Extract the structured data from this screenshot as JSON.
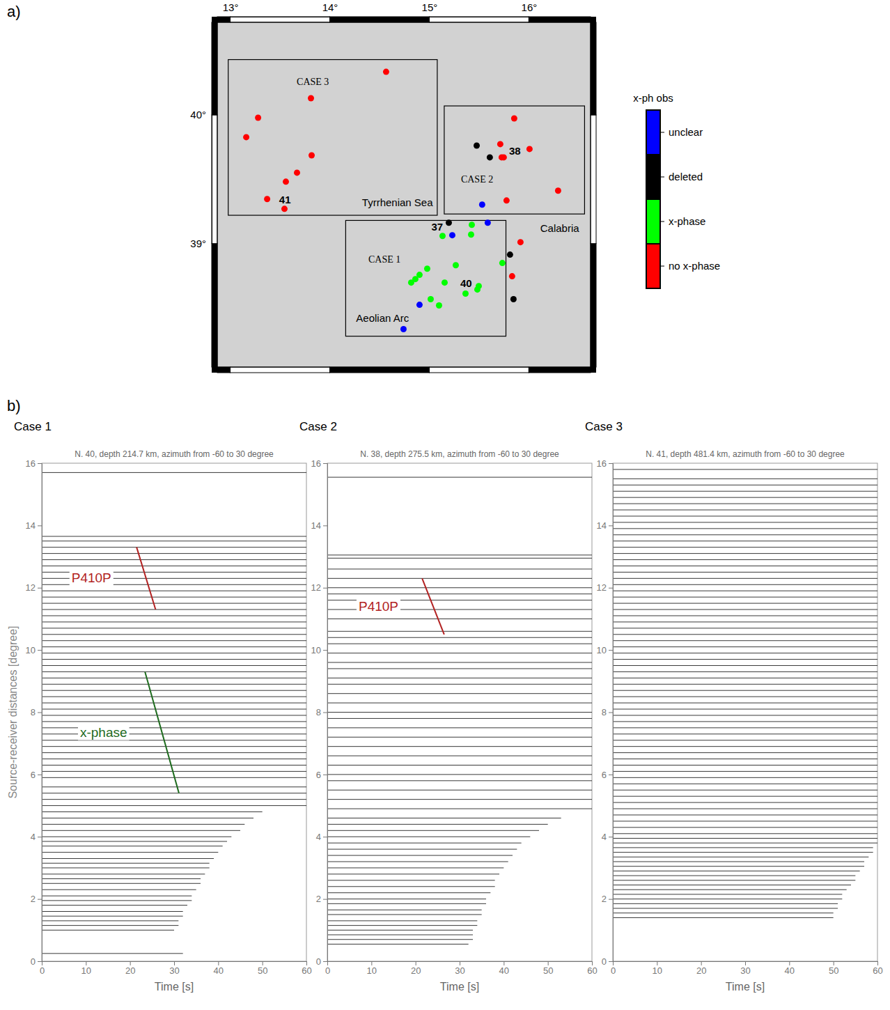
{
  "chart_data": [
    {
      "type": "scatter",
      "panel_label": "a)",
      "xlim": [
        12.87,
        16.62
      ],
      "ylim": [
        38.04,
        40.72
      ],
      "xticks": [
        {
          "value": 13,
          "label": "13°"
        },
        {
          "value": 14,
          "label": "14°"
        },
        {
          "value": 15,
          "label": "15°"
        },
        {
          "value": 16,
          "label": "16°"
        }
      ],
      "yticks": [
        {
          "value": 39,
          "label": "39°"
        },
        {
          "value": 40,
          "label": "40°"
        }
      ],
      "legend": "right",
      "legend_title": "x-ph obs",
      "series": [
        {
          "name": "unclear",
          "color": "#0000ff",
          "x": [
            15.531,
            15.587,
            15.231,
            14.902,
            14.741
          ],
          "y": [
            39.303,
            39.162,
            39.065,
            38.524,
            38.335
          ]
        },
        {
          "name": "deleted",
          "color": "#000000",
          "x": [
            15.476,
            15.608,
            15.196,
            15.811,
            15.846
          ],
          "y": [
            39.762,
            39.67,
            39.162,
            38.914,
            38.568
          ]
        },
        {
          "name": "x-phase",
          "color": "#00ff00",
          "x": [
            15.427,
            15.133,
            15.42,
            15.266,
            14.979,
            15.734,
            14.902,
            14.86,
            14.818,
            15.154,
            15.497,
            15.483,
            15.364,
            15.014,
            15.098
          ],
          "y": [
            39.146,
            39.059,
            39.07,
            38.832,
            38.805,
            38.849,
            38.757,
            38.724,
            38.697,
            38.697,
            38.67,
            38.643,
            38.611,
            38.568,
            38.519
          ]
        },
        {
          "name": "no x-phase",
          "color": "#ff0000",
          "x": [
            14.566,
            13.811,
            13.28,
            13.161,
            13.818,
            13.671,
            13.559,
            13.371,
            13.545,
            15.853,
            15.713,
            15.727,
            15.748,
            16.007,
            16.294,
            15.776,
            15.916,
            15.832
          ],
          "y": [
            40.335,
            40.13,
            39.978,
            39.827,
            39.686,
            39.551,
            39.481,
            39.346,
            39.27,
            39.973,
            39.773,
            39.67,
            39.67,
            39.735,
            39.411,
            39.335,
            39.011,
            38.746
          ]
        }
      ],
      "boxes": [
        {
          "label": "CASE 3",
          "x": [
            12.98,
            15.08
          ],
          "y": [
            39.22,
            40.43
          ],
          "label_x": 13.83,
          "label_y": 40.26
        },
        {
          "label": "CASE 2",
          "x": [
            15.15,
            16.56
          ],
          "y": [
            39.23,
            40.07
          ],
          "label_x": 15.48,
          "label_y": 39.5
        },
        {
          "label": "CASE 1",
          "x": [
            14.16,
            15.77
          ],
          "y": [
            38.28,
            39.18
          ],
          "label_x": 14.55,
          "label_y": 38.88
        }
      ],
      "annotations": [
        {
          "text": "Tyrrhenian Sea",
          "x": 14.68,
          "y": 39.32
        },
        {
          "text": "Calabria",
          "x": 16.31,
          "y": 39.12
        },
        {
          "text": "Aeolian Arc",
          "x": 14.53,
          "y": 38.42
        }
      ],
      "event_labels": [
        {
          "text": "41",
          "x": 13.55,
          "y": 39.34
        },
        {
          "text": "38",
          "x": 15.86,
          "y": 39.72
        },
        {
          "text": "37",
          "x": 15.08,
          "y": 39.13
        },
        {
          "text": "40",
          "x": 15.37,
          "y": 38.69
        }
      ]
    },
    {
      "type": "record_section",
      "panel_label": "b)",
      "heading": "Case 1",
      "title": "N. 40, depth 214.7 km, azimuth from -60 to 30 degree",
      "xlabel": "Time [s]",
      "ylabel": "Source-receiver distances [degree]",
      "xlim": [
        0,
        60
      ],
      "ylim": [
        0,
        16
      ],
      "xticks": [
        0,
        10,
        20,
        30,
        40,
        50,
        60
      ],
      "yticks": [
        0,
        2,
        4,
        6,
        8,
        10,
        12,
        14,
        16
      ],
      "traces": {
        "distances": [
          0.25,
          1.0,
          1.15,
          1.3,
          1.45,
          1.6,
          1.8,
          1.95,
          2.1,
          2.3,
          2.5,
          2.65,
          2.8,
          3.0,
          3.15,
          3.3,
          3.5,
          3.7,
          3.85,
          4.0,
          4.2,
          4.4,
          4.6,
          4.8,
          5.0,
          5.2,
          5.4,
          5.6,
          5.9,
          6.1,
          6.3,
          6.5,
          6.7,
          6.9,
          7.1,
          7.3,
          7.5,
          7.7,
          7.9,
          8.1,
          8.3,
          8.5,
          8.7,
          8.9,
          9.1,
          9.3,
          9.5,
          9.7,
          9.9,
          10.1,
          10.3,
          10.5,
          10.7,
          10.9,
          11.1,
          11.3,
          11.5,
          11.7,
          11.9,
          12.1,
          12.3,
          12.5,
          12.7,
          12.9,
          13.1,
          13.3,
          13.5,
          13.65,
          15.7
        ],
        "end_times": [
          32,
          30,
          31,
          31,
          32,
          32,
          33,
          34,
          34,
          35,
          36,
          36,
          37,
          38,
          38,
          39,
          40,
          41,
          42,
          43,
          45,
          46,
          48,
          50,
          60,
          60,
          60,
          60,
          60,
          60,
          60,
          60,
          60,
          60,
          60,
          60,
          60,
          60,
          60,
          60,
          60,
          60,
          60,
          60,
          60,
          60,
          60,
          60,
          60,
          60,
          60,
          60,
          60,
          60,
          60,
          60,
          60,
          60,
          60,
          60,
          60,
          60,
          60,
          60,
          60,
          60,
          60,
          60,
          60
        ]
      },
      "annotations": [
        {
          "text": "P410P",
          "color": "#b22222",
          "x": [
            21.5,
            25.8
          ],
          "y": [
            13.3,
            11.3
          ]
        },
        {
          "text": "x-phase",
          "color": "#1e6b1e",
          "x": [
            23.4,
            31.1
          ],
          "y": [
            9.3,
            5.4
          ]
        }
      ]
    },
    {
      "type": "record_section",
      "heading": "Case 2",
      "title": "N. 38, depth 275.5 km, azimuth from -60 to 30 degree",
      "xlabel": "Time [s]",
      "xlim": [
        0,
        60
      ],
      "ylim": [
        0,
        16
      ],
      "xticks": [
        0,
        10,
        20,
        30,
        40,
        50,
        60
      ],
      "yticks": [
        0,
        2,
        4,
        6,
        8,
        10,
        12,
        14,
        16
      ],
      "traces": {
        "distances": [
          0.55,
          0.7,
          0.85,
          1.0,
          1.15,
          1.3,
          1.5,
          1.65,
          1.85,
          2.0,
          2.2,
          2.4,
          2.6,
          2.8,
          3.0,
          3.2,
          3.4,
          3.6,
          3.8,
          4.0,
          4.2,
          4.4,
          4.6,
          4.9,
          5.2,
          5.5,
          5.8,
          6.0,
          6.3,
          6.6,
          6.9,
          7.2,
          7.5,
          7.8,
          8.0,
          8.3,
          8.6,
          8.9,
          9.1,
          9.4,
          9.6,
          9.9,
          10.2,
          10.4,
          10.6,
          11.0,
          11.3,
          11.6,
          11.8,
          12.0,
          12.3,
          12.6,
          12.95,
          13.05,
          15.55
        ],
        "end_times": [
          32,
          33,
          33,
          33,
          34,
          34,
          35,
          35,
          36,
          36,
          37,
          38,
          38,
          39,
          40,
          41,
          42,
          43,
          44,
          46,
          48,
          50,
          53,
          60,
          60,
          60,
          60,
          60,
          60,
          60,
          60,
          60,
          60,
          60,
          60,
          60,
          60,
          60,
          60,
          60,
          60,
          60,
          60,
          60,
          60,
          60,
          60,
          60,
          60,
          60,
          60,
          60,
          60,
          60,
          60
        ]
      },
      "annotations": [
        {
          "text": "P410P",
          "color": "#b22222",
          "x": [
            21.5,
            26.5
          ],
          "y": [
            12.3,
            10.5
          ]
        }
      ]
    },
    {
      "type": "record_section",
      "heading": "Case 3",
      "title": "N. 41, depth 481.4 km, azimuth from -60 to 30 degree",
      "xlabel": "Time [s]",
      "xlim": [
        0,
        60
      ],
      "ylim": [
        0,
        16
      ],
      "xticks": [
        0,
        10,
        20,
        30,
        40,
        50,
        60
      ],
      "yticks": [
        0,
        2,
        4,
        6,
        8,
        10,
        12,
        14,
        16
      ],
      "traces": {
        "distances": [
          1.4,
          1.55,
          1.7,
          1.85,
          2.0,
          2.15,
          2.3,
          2.45,
          2.6,
          2.75,
          2.9,
          3.05,
          3.2,
          3.35,
          3.5,
          3.65,
          3.8,
          3.95,
          4.1,
          4.3,
          4.5,
          4.7,
          4.9,
          5.1,
          5.3,
          5.5,
          5.7,
          5.9,
          6.1,
          6.3,
          6.5,
          6.7,
          6.9,
          7.1,
          7.3,
          7.5,
          7.7,
          7.9,
          8.1,
          8.3,
          8.5,
          8.7,
          8.9,
          9.1,
          9.3,
          9.5,
          9.7,
          9.9,
          10.1,
          10.3,
          10.5,
          10.7,
          10.9,
          11.1,
          11.3,
          11.5,
          11.7,
          11.9,
          12.1,
          12.3,
          12.5,
          12.7,
          12.9,
          13.1,
          13.3,
          13.5,
          13.7,
          13.9,
          14.1,
          14.3,
          14.5,
          14.7,
          14.9,
          15.1,
          15.3,
          15.5,
          15.8
        ],
        "end_times": [
          50,
          50,
          51,
          51,
          52,
          52,
          53,
          54,
          55,
          55,
          56,
          57,
          57,
          58,
          59,
          59,
          60,
          60,
          60,
          60,
          60,
          60,
          60,
          60,
          60,
          60,
          60,
          60,
          60,
          60,
          60,
          60,
          60,
          60,
          60,
          60,
          60,
          60,
          60,
          60,
          60,
          60,
          60,
          60,
          60,
          60,
          60,
          60,
          60,
          60,
          60,
          60,
          60,
          60,
          60,
          60,
          60,
          60,
          60,
          60,
          60,
          60,
          60,
          60,
          60,
          60,
          60,
          60,
          60,
          60,
          60,
          60,
          60,
          60,
          60,
          60,
          60
        ]
      }
    }
  ]
}
